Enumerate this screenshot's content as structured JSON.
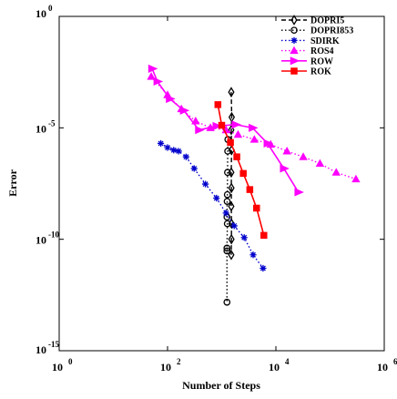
{
  "chart_data": {
    "type": "scatter",
    "title": "",
    "xlabel": "Number of Steps",
    "ylabel": "Error",
    "x_scale": "log",
    "y_scale": "log",
    "xlim": [
      1,
      1000000
    ],
    "ylim": [
      1e-15,
      1
    ],
    "grid": false,
    "legend_position": "top-right",
    "x_ticks": [
      {
        "value": 1,
        "base": "10",
        "exp": "0"
      },
      {
        "value": 100,
        "base": "10",
        "exp": "2"
      },
      {
        "value": 10000,
        "base": "10",
        "exp": "4"
      },
      {
        "value": 1000000,
        "base": "10",
        "exp": "6"
      }
    ],
    "y_ticks": [
      {
        "value": 1,
        "base": "10",
        "exp": "0"
      },
      {
        "value": 1e-05,
        "base": "10",
        "exp": "-5"
      },
      {
        "value": 1e-10,
        "base": "10",
        "exp": "-10"
      },
      {
        "value": 1e-15,
        "base": "10",
        "exp": "-15"
      }
    ],
    "series": [
      {
        "name": "DOPRI5",
        "color": "#000000",
        "line": "dashed",
        "marker": "diamond",
        "points": [
          [
            1500,
            0.0004
          ],
          [
            1530,
            3e-05
          ],
          [
            1500,
            8e-06
          ],
          [
            1520,
            1e-06
          ],
          [
            1500,
            1e-07
          ],
          [
            1510,
            2e-08
          ],
          [
            1500,
            3e-09
          ],
          [
            1520,
            5e-10
          ],
          [
            1510,
            1e-10
          ],
          [
            1500,
            2e-11
          ]
        ]
      },
      {
        "name": "DOPRI853",
        "color": "#000000",
        "line": "dotted",
        "marker": "circle",
        "points": [
          [
            1300,
            3e-06
          ],
          [
            1290,
            9e-07
          ],
          [
            1280,
            1e-07
          ],
          [
            1270,
            1e-08
          ],
          [
            1260,
            5e-09
          ],
          [
            1250,
            1e-09
          ],
          [
            1270,
            5e-10
          ],
          [
            1250,
            4e-11
          ],
          [
            1250,
            3e-11
          ],
          [
            1250,
            1.5e-13
          ]
        ]
      },
      {
        "name": "SDIRK",
        "color": "#0000cc",
        "line": "dotted",
        "marker": "asterisk",
        "points": [
          [
            75,
            2e-06
          ],
          [
            100,
            1.3e-06
          ],
          [
            130,
            1e-06
          ],
          [
            160,
            9e-07
          ],
          [
            220,
            5e-07
          ],
          [
            310,
            1.5e-07
          ],
          [
            500,
            3e-08
          ],
          [
            800,
            7e-09
          ],
          [
            1200,
            1.5e-09
          ],
          [
            1700,
            4e-10
          ],
          [
            2600,
            1.2e-10
          ],
          [
            3800,
            2e-11
          ],
          [
            5800,
            5e-12
          ]
        ]
      },
      {
        "name": "ROS4",
        "color": "#ff00ff",
        "line": "dotted",
        "marker": "triangle",
        "points": [
          [
            50,
            0.002
          ],
          [
            100,
            0.0003
          ],
          [
            180,
            7e-05
          ],
          [
            330,
            2e-05
          ],
          [
            620,
            1e-05
          ],
          [
            1200,
            8e-06
          ],
          [
            2000,
            5e-06
          ],
          [
            4000,
            3e-06
          ],
          [
            8000,
            1.8e-06
          ],
          [
            16000,
            9e-07
          ],
          [
            32000,
            5e-07
          ],
          [
            65000,
            2.5e-07
          ],
          [
            130000,
            1e-07
          ],
          [
            300000,
            5e-08
          ]
        ]
      },
      {
        "name": "ROW",
        "color": "#ff00ff",
        "line": "solid",
        "marker": "triangle-right",
        "points": [
          [
            52,
            0.0045
          ],
          [
            65,
            0.0012
          ],
          [
            110,
            0.0002
          ],
          [
            200,
            6e-05
          ],
          [
            380,
            8e-06
          ],
          [
            800,
            1.2e-05
          ],
          [
            1800,
            1.4e-05
          ],
          [
            3700,
            1e-05
          ],
          [
            7000,
            2e-06
          ],
          [
            14000,
            1.5e-07
          ],
          [
            26000,
            1.3e-08
          ]
        ]
      },
      {
        "name": "ROK",
        "color": "#ff0000",
        "line": "solid",
        "marker": "square",
        "points": [
          [
            850,
            0.00011
          ],
          [
            1000,
            1.3e-05
          ],
          [
            1450,
            2.2e-06
          ],
          [
            1900,
            5e-07
          ],
          [
            2500,
            9e-08
          ],
          [
            3300,
            1.7e-08
          ],
          [
            4400,
            2.5e-09
          ],
          [
            6000,
            1.5e-10
          ]
        ]
      }
    ]
  }
}
